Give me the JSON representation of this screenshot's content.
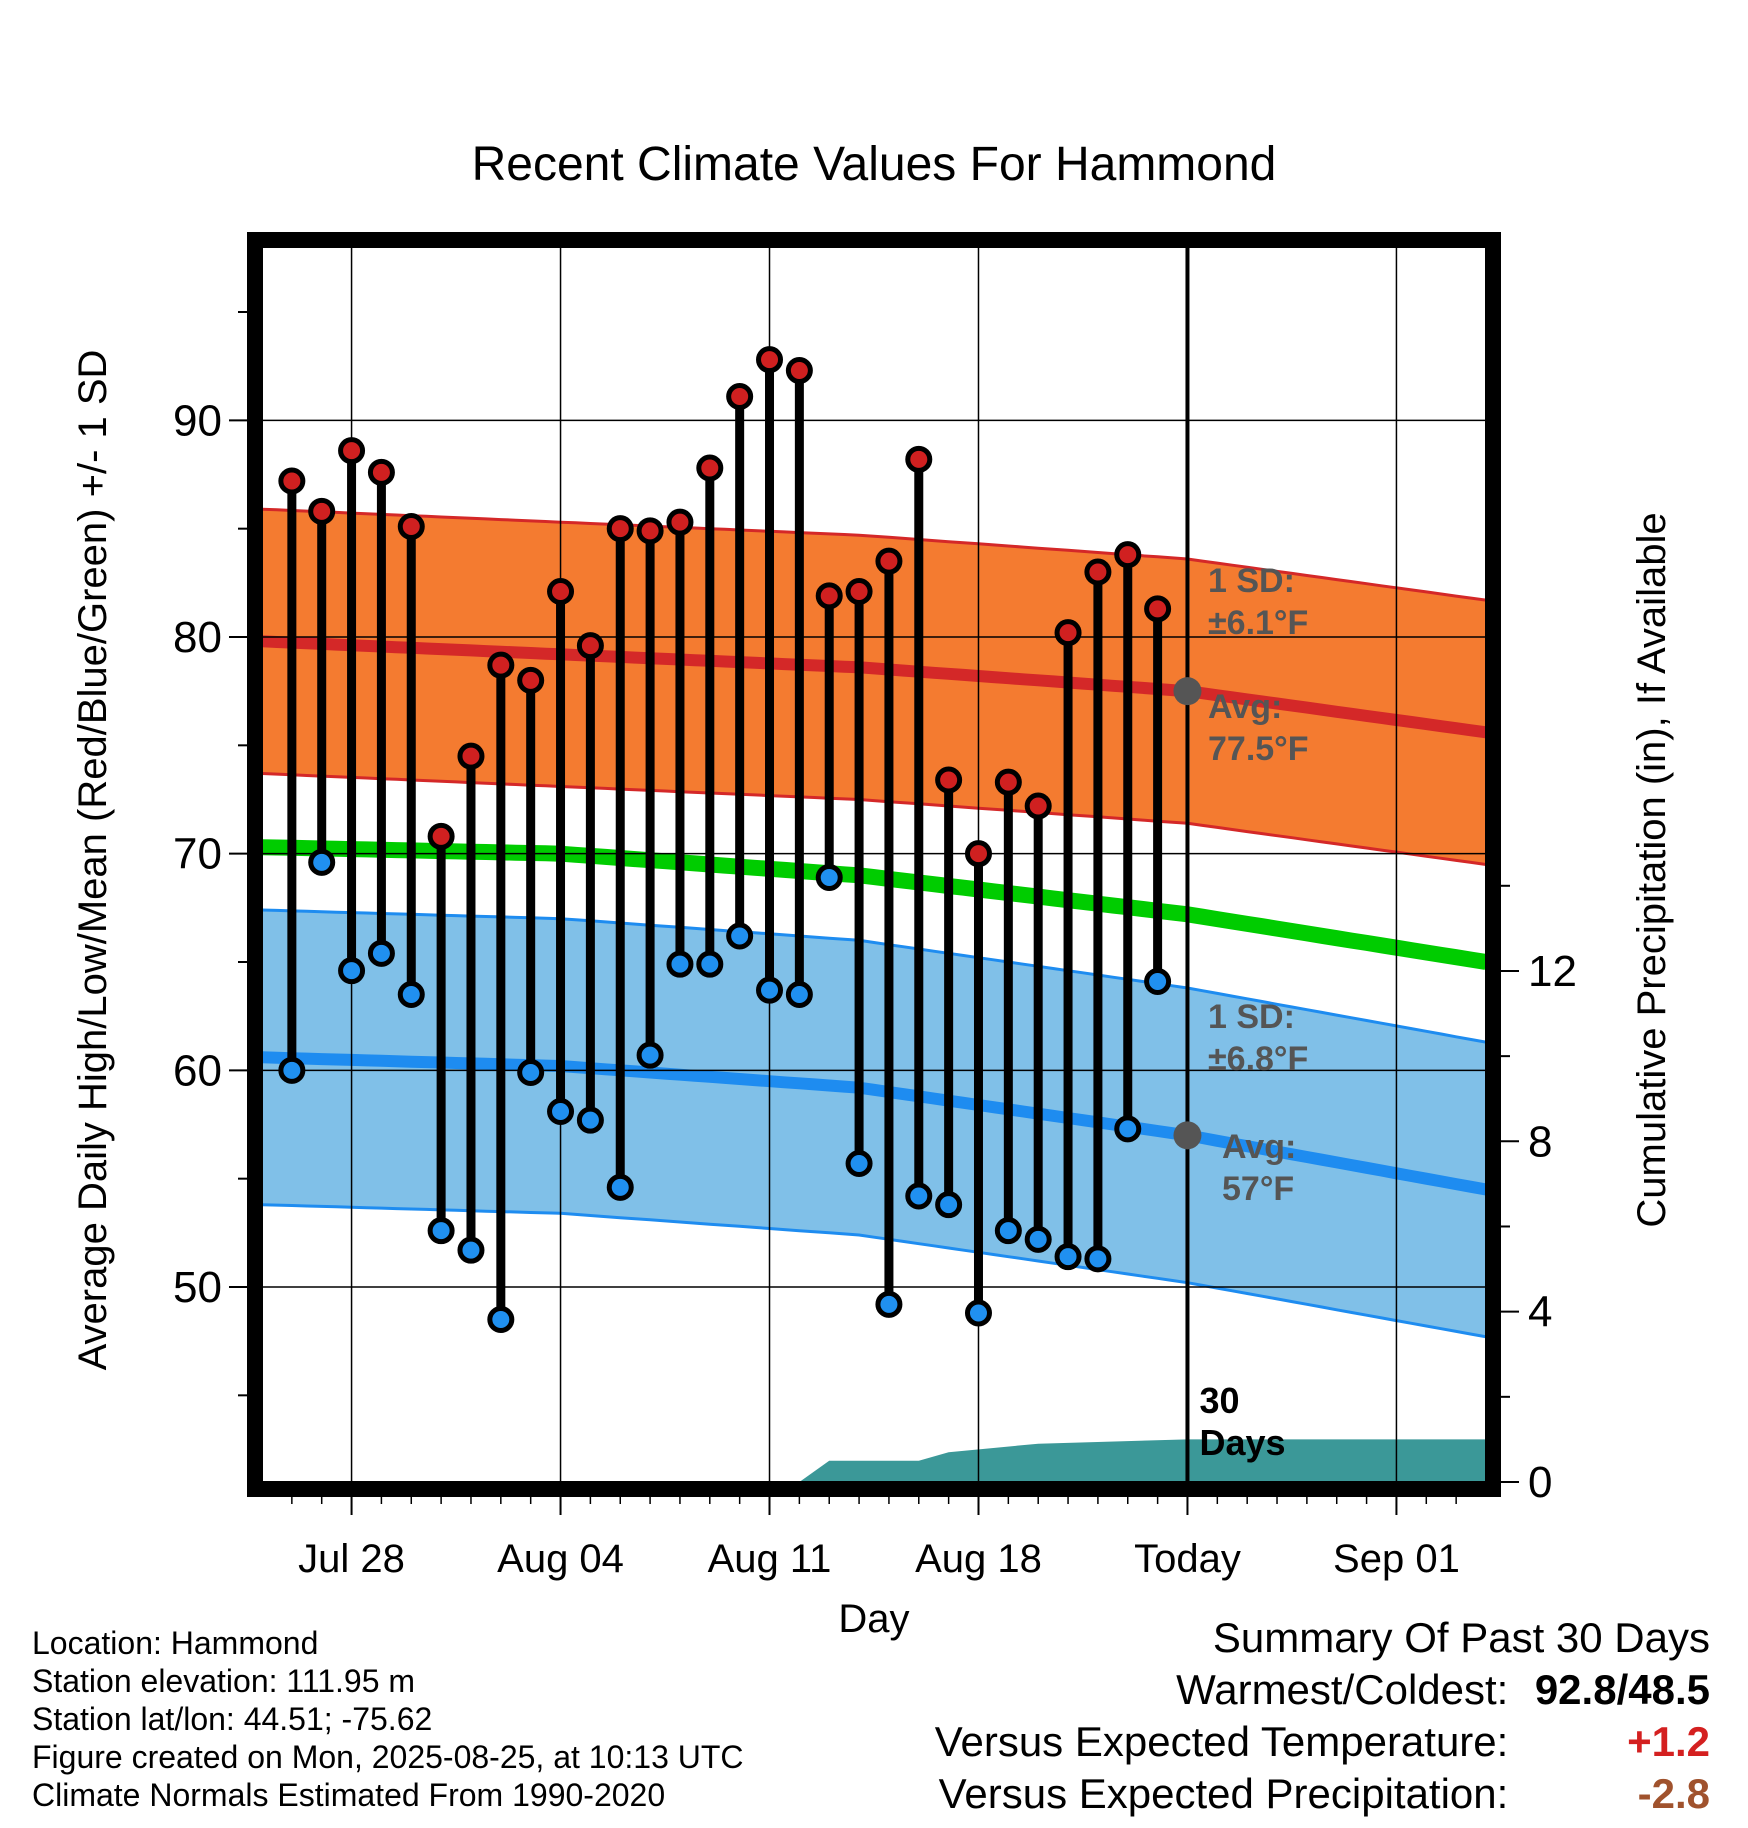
{
  "chart_data": {
    "type": "scatter",
    "title": "Recent Climate Values For Hammond",
    "xlabel": "Day",
    "ylabel": "Average Daily High/Low/Mean (Red/Blue/Green) +/- 1 SD",
    "y2label": "Cumulative Precipitation (in), If Available",
    "x_tick_labels": [
      "Jul 28",
      "Aug 04",
      "Aug 11",
      "Aug 18",
      "Today",
      "Sep 01"
    ],
    "x_tick_days": [
      3,
      10,
      17,
      24,
      31,
      38
    ],
    "xlim_days": [
      0,
      41
    ],
    "ylim": [
      41,
      98
    ],
    "y_ticks": [
      50,
      60,
      70,
      80,
      90
    ],
    "y2lim": [
      0,
      29
    ],
    "y2_ticks": [
      0,
      4,
      8,
      12
    ],
    "today_day": 31,
    "today_label": "30\nDays",
    "daily_highs": [
      87.2,
      85.8,
      88.6,
      87.6,
      85.1,
      70.8,
      74.5,
      78.7,
      78.0,
      82.1,
      79.6,
      85.0,
      84.9,
      85.3,
      87.8,
      91.1,
      92.8,
      92.3,
      81.9,
      82.1,
      83.5,
      88.2,
      73.4,
      70.0,
      73.3,
      72.2,
      80.2,
      83.0,
      83.8,
      81.3
    ],
    "daily_lows": [
      60.0,
      69.6,
      64.6,
      65.4,
      63.5,
      52.6,
      51.7,
      48.5,
      59.9,
      58.1,
      57.7,
      54.6,
      60.7,
      64.9,
      64.9,
      66.2,
      63.7,
      63.5,
      68.9,
      55.7,
      49.2,
      54.2,
      53.8,
      48.8,
      52.6,
      52.2,
      51.4,
      51.3,
      57.3,
      64.1
    ],
    "normal_high": {
      "days": [
        0,
        10,
        20,
        31,
        41
      ],
      "avg": [
        79.8,
        79.2,
        78.6,
        77.5,
        75.6
      ],
      "sd": 6.1
    },
    "normal_low": {
      "days": [
        0,
        10,
        20,
        31,
        41
      ],
      "avg": [
        60.6,
        60.2,
        59.2,
        57.0,
        54.5
      ],
      "sd": 6.8
    },
    "normal_mean": {
      "days": [
        0,
        10,
        20,
        31,
        41
      ],
      "values": [
        70.3,
        70.0,
        69.0,
        67.2,
        65.0
      ]
    },
    "precip": {
      "days": [
        18,
        19,
        22,
        23,
        26,
        31,
        41
      ],
      "values": [
        0.0,
        0.5,
        0.5,
        0.7,
        0.9,
        1.0,
        1.0
      ]
    },
    "annotations": {
      "high_sd": [
        "1 SD:",
        "±6.1°F"
      ],
      "high_avg": [
        "Avg:",
        "77.5°F"
      ],
      "low_sd": [
        "1 SD:",
        "±6.8°F"
      ],
      "low_avg": [
        "Avg:",
        "57°F"
      ]
    },
    "grid": true,
    "colors": {
      "high_band": "#f47b30",
      "high_line": "#d42828",
      "low_band": "#80c0e8",
      "low_line": "#1e8cf0",
      "mean_line": "#00cc00",
      "precip": "#3b9898",
      "high_dot": "#d02020",
      "low_dot": "#2090f0",
      "annotation": "#555555",
      "warm": "#d42020",
      "dry": "#a0522d"
    }
  },
  "info": {
    "location": "Location: Hammond",
    "elevation": "Station elevation: 111.95 m",
    "latlon": "Station lat/lon: 44.51; -75.62",
    "created": "Figure created on Mon, 2025-08-25, at 10:13 UTC",
    "normals": "Climate Normals Estimated From 1990-2020"
  },
  "summary": {
    "title": "Summary Of Past 30 Days",
    "warmest_label": "Warmest/Coldest:",
    "warmest_value": "92.8/48.5",
    "temp_label": "Versus Expected Temperature:",
    "temp_value": "+1.2",
    "precip_label": "Versus Expected Precipitation:",
    "precip_value": "-2.8"
  }
}
